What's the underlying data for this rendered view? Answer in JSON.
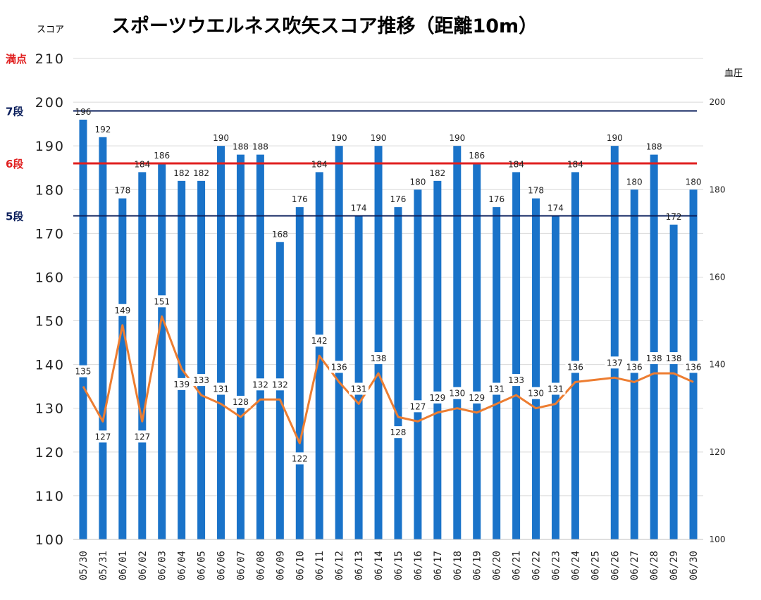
{
  "chart_data": {
    "type": "bar",
    "title": "スポーツウエルネス吹矢スコア推移（距離10m）",
    "ylabel": "スコア",
    "y2label": "血圧",
    "ylim": [
      100,
      210
    ],
    "yticks": [
      100,
      110,
      120,
      130,
      140,
      150,
      160,
      170,
      180,
      190,
      200,
      210
    ],
    "y2lim": [
      100,
      210
    ],
    "y2ticks": [
      100,
      120,
      140,
      160,
      180,
      200
    ],
    "categories": [
      "05/30",
      "05/31",
      "06/01",
      "06/02",
      "06/03",
      "06/04",
      "06/05",
      "06/06",
      "06/07",
      "06/08",
      "06/09",
      "06/10",
      "06/11",
      "06/12",
      "06/13",
      "06/14",
      "06/15",
      "06/16",
      "06/17",
      "06/18",
      "06/19",
      "06/20",
      "06/21",
      "06/22",
      "06/23",
      "06/24",
      "06/25",
      "06/26",
      "06/27",
      "06/28",
      "06/29",
      "06/30"
    ],
    "series": [
      {
        "name": "スコア",
        "kind": "bar",
        "axis": "left",
        "color": "#1a73c9",
        "values": [
          196,
          192,
          178,
          184,
          186,
          182,
          182,
          190,
          188,
          188,
          168,
          176,
          184,
          190,
          174,
          190,
          176,
          180,
          182,
          190,
          186,
          176,
          184,
          178,
          174,
          184,
          null,
          190,
          180,
          188,
          172,
          180
        ]
      },
      {
        "name": "血圧",
        "kind": "line",
        "axis": "right",
        "color": "#ed7d31",
        "values": [
          135,
          127,
          149,
          127,
          151,
          139,
          133,
          131,
          128,
          132,
          132,
          122,
          142,
          136,
          131,
          138,
          128,
          127,
          129,
          130,
          129,
          131,
          133,
          130,
          131,
          136,
          null,
          137,
          136,
          138,
          138,
          136
        ]
      }
    ],
    "reference_lines": [
      {
        "label": "満点",
        "value": 210,
        "color": "#e02020"
      },
      {
        "label": "7段",
        "value": 198,
        "color": "#0b1f5c"
      },
      {
        "label": "6段",
        "value": 186,
        "color": "#e02020"
      },
      {
        "label": "5段",
        "value": 174,
        "color": "#0b1f5c"
      }
    ],
    "grid": true
  }
}
